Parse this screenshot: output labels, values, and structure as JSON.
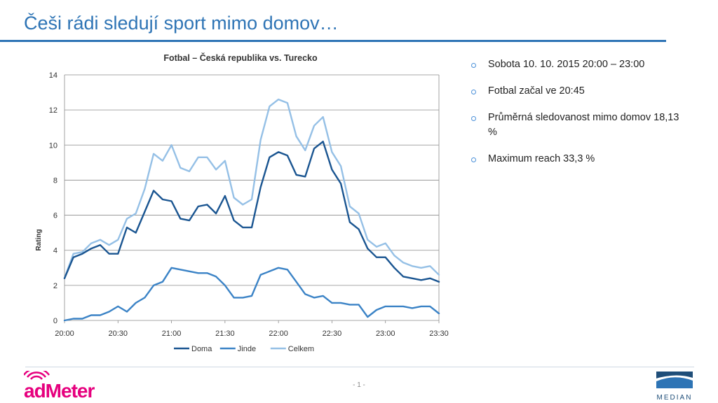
{
  "slide": {
    "title": "Češi rádi sledují sport mimo domov…",
    "page_number": "- 1 -"
  },
  "bullets": [
    "Sobota 10. 10. 2015 20:00 – 23:00",
    "Fotbal začal ve 20:45",
    "Průměrná sledovanost mimo domov 18,13 %",
    "Maximum reach 33,3 %"
  ],
  "logos": {
    "admeter": "adMeter",
    "median": "MEDIAN"
  },
  "colors": {
    "title": "#2e74b5",
    "doma": "#1a5591",
    "jinde": "#3b83c6",
    "celkem": "#95c0e6",
    "admeter": "#e6007e",
    "median": "#1f4e79"
  },
  "chart_data": {
    "type": "line",
    "title": "Fotbal – Česká republika vs. Turecko",
    "xlabel": "",
    "ylabel": "Rating",
    "ylim": [
      0,
      14
    ],
    "yticks": [
      0,
      2,
      4,
      6,
      8,
      10,
      12,
      14
    ],
    "xlim": [
      "20:00",
      "23:30"
    ],
    "xticks": [
      "20:00",
      "20:30",
      "21:00",
      "21:30",
      "22:00",
      "22:30",
      "23:00",
      "23:30"
    ],
    "grid": true,
    "legend": "bottom",
    "x": [
      "20:00",
      "20:05",
      "20:10",
      "20:15",
      "20:20",
      "20:25",
      "20:30",
      "20:35",
      "20:40",
      "20:45",
      "20:50",
      "20:55",
      "21:00",
      "21:05",
      "21:10",
      "21:15",
      "21:20",
      "21:25",
      "21:30",
      "21:35",
      "21:40",
      "21:45",
      "21:50",
      "21:55",
      "22:00",
      "22:05",
      "22:10",
      "22:15",
      "22:20",
      "22:25",
      "22:30",
      "22:35",
      "22:40",
      "22:45",
      "22:50",
      "22:55",
      "23:00",
      "23:05",
      "23:10",
      "23:15",
      "23:20",
      "23:25",
      "23:30"
    ],
    "series": [
      {
        "name": "Doma",
        "values": [
          2.4,
          3.6,
          3.8,
          4.1,
          4.3,
          3.8,
          3.8,
          5.3,
          5.0,
          6.2,
          7.4,
          6.9,
          6.8,
          5.8,
          5.7,
          6.5,
          6.6,
          6.1,
          7.1,
          5.7,
          5.3,
          5.3,
          7.6,
          9.3,
          9.6,
          9.4,
          8.3,
          8.2,
          9.8,
          10.2,
          8.6,
          7.8,
          5.6,
          5.2,
          4.1,
          3.6,
          3.6,
          3.0,
          2.5,
          2.4,
          2.3,
          2.4,
          2.2
        ]
      },
      {
        "name": "Jinde",
        "values": [
          0.0,
          0.1,
          0.1,
          0.3,
          0.3,
          0.5,
          0.8,
          0.5,
          1.0,
          1.3,
          2.0,
          2.2,
          3.0,
          2.9,
          2.8,
          2.7,
          2.7,
          2.5,
          2.0,
          1.3,
          1.3,
          1.4,
          2.6,
          2.8,
          3.0,
          2.9,
          2.2,
          1.5,
          1.3,
          1.4,
          1.0,
          1.0,
          0.9,
          0.9,
          0.2,
          0.6,
          0.8,
          0.8,
          0.8,
          0.7,
          0.8,
          0.8,
          0.4
        ]
      },
      {
        "name": "Celkem",
        "values": [
          2.4,
          3.8,
          3.9,
          4.4,
          4.6,
          4.3,
          4.6,
          5.8,
          6.1,
          7.5,
          9.5,
          9.1,
          10.0,
          8.7,
          8.5,
          9.3,
          9.3,
          8.6,
          9.1,
          7.0,
          6.6,
          6.9,
          10.3,
          12.2,
          12.6,
          12.4,
          10.5,
          9.7,
          11.1,
          11.6,
          9.6,
          8.8,
          6.5,
          6.1,
          4.6,
          4.2,
          4.4,
          3.7,
          3.3,
          3.1,
          3.0,
          3.1,
          2.6
        ]
      }
    ]
  }
}
